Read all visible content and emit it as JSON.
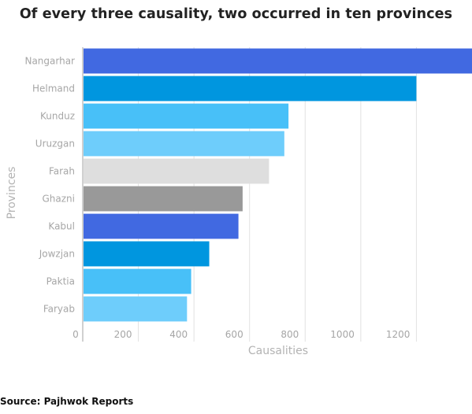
{
  "title": "Of every three causality, two occurred in ten provinces",
  "source": "Source: Pajhwok Reports",
  "colors": {
    "royal_blue": "#4169e1",
    "azure": "#0096df",
    "sky": "#48c0f8",
    "light_sky": "#6ecdfb",
    "light_gray": "#dedede",
    "gray": "#999999",
    "grid": "#e2e2e2",
    "text": "#a6a6a6"
  },
  "chart_data": {
    "type": "bar",
    "orientation": "horizontal",
    "title": "Of every three causality, two occurred in ten provinces",
    "xlabel": "Causalities",
    "ylabel": "Provinces",
    "xlim": [
      0,
      1400
    ],
    "xticks": [
      0,
      200,
      400,
      600,
      800,
      1000,
      1200
    ],
    "grid": true,
    "categories": [
      "Nangarhar",
      "Helmand",
      "Kunduz",
      "Uruzgan",
      "Farah",
      "Ghazni",
      "Kabul",
      "Jowzjan",
      "Paktia",
      "Faryab"
    ],
    "values": [
      1400,
      1200,
      740,
      725,
      670,
      575,
      560,
      455,
      390,
      375
    ],
    "bar_colors": [
      "#4169e1",
      "#0096df",
      "#48c0f8",
      "#6ecdfb",
      "#dedede",
      "#999999",
      "#4169e1",
      "#0096df",
      "#48c0f8",
      "#6ecdfb"
    ]
  }
}
